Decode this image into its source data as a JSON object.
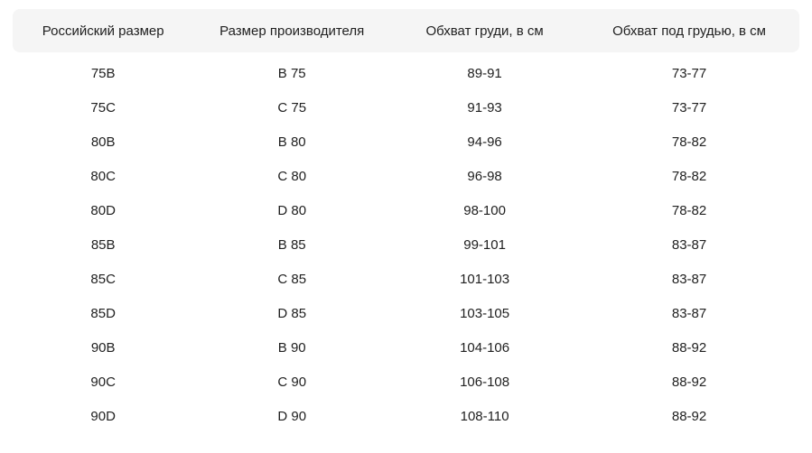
{
  "colors": {
    "header_bg": "#f5f5f5",
    "text": "#212121",
    "background": "#ffffff"
  },
  "table": {
    "columns": [
      {
        "label": "Российский размер"
      },
      {
        "label": "Размер производителя"
      },
      {
        "label": "Обхват груди, в см"
      },
      {
        "label": "Обхват под грудью, в см"
      }
    ],
    "rows": [
      {
        "russian_size": "75B",
        "manufacturer_size": "B 75",
        "bust": "89-91",
        "underbust": "73-77"
      },
      {
        "russian_size": "75C",
        "manufacturer_size": "C 75",
        "bust": "91-93",
        "underbust": "73-77"
      },
      {
        "russian_size": "80B",
        "manufacturer_size": "B 80",
        "bust": "94-96",
        "underbust": "78-82"
      },
      {
        "russian_size": "80C",
        "manufacturer_size": "C 80",
        "bust": "96-98",
        "underbust": "78-82"
      },
      {
        "russian_size": "80D",
        "manufacturer_size": "D 80",
        "bust": "98-100",
        "underbust": "78-82"
      },
      {
        "russian_size": "85B",
        "manufacturer_size": "B 85",
        "bust": "99-101",
        "underbust": "83-87"
      },
      {
        "russian_size": "85C",
        "manufacturer_size": "C 85",
        "bust": "101-103",
        "underbust": "83-87"
      },
      {
        "russian_size": "85D",
        "manufacturer_size": "D 85",
        "bust": "103-105",
        "underbust": "83-87"
      },
      {
        "russian_size": "90B",
        "manufacturer_size": "B 90",
        "bust": "104-106",
        "underbust": "88-92"
      },
      {
        "russian_size": "90C",
        "manufacturer_size": "C 90",
        "bust": "106-108",
        "underbust": "88-92"
      },
      {
        "russian_size": "90D",
        "manufacturer_size": "D 90",
        "bust": "108-110",
        "underbust": "88-92"
      }
    ]
  }
}
